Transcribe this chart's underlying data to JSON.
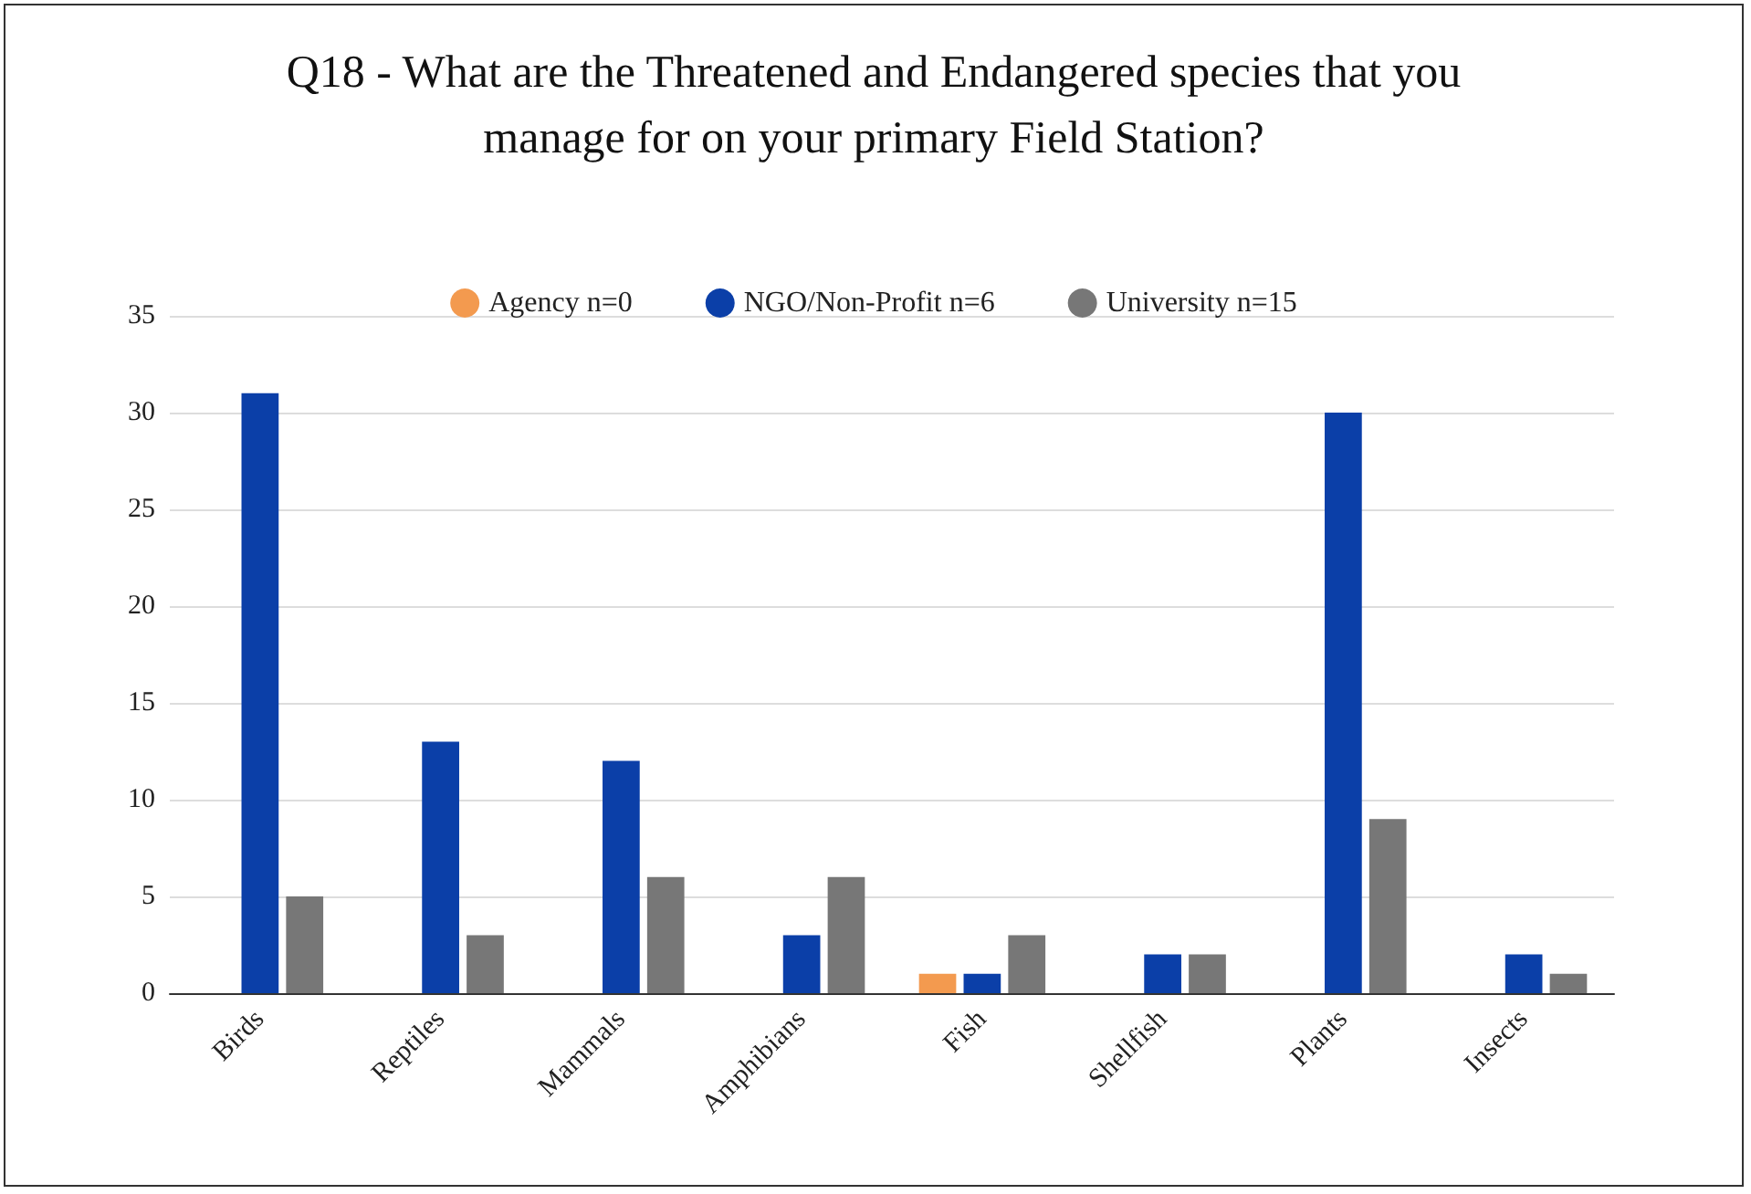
{
  "chart_data": {
    "type": "bar",
    "title": "Q18 - What are the Threatened and Endangered species that you\nmanage for on your primary Field Station?",
    "categories": [
      "Birds",
      "Reptiles",
      "Mammals",
      "Amphibians",
      "Fish",
      "Shellfish",
      "Plants",
      "Insects"
    ],
    "series": [
      {
        "name": "Agency n=0",
        "color": "#f39a4f",
        "values": [
          0,
          0,
          0,
          0,
          1,
          0,
          0,
          0
        ]
      },
      {
        "name": "NGO/Non-Profit n=6",
        "color": "#0b3fa8",
        "values": [
          31,
          13,
          12,
          3,
          1,
          2,
          30,
          2
        ]
      },
      {
        "name": "University n=15",
        "color": "#777777",
        "values": [
          5,
          3,
          6,
          6,
          3,
          2,
          9,
          1
        ]
      }
    ],
    "ylim": [
      0,
      35
    ],
    "yticks": [
      0,
      5,
      10,
      15,
      20,
      25,
      30,
      35
    ],
    "grid": "y",
    "legend": "top"
  }
}
